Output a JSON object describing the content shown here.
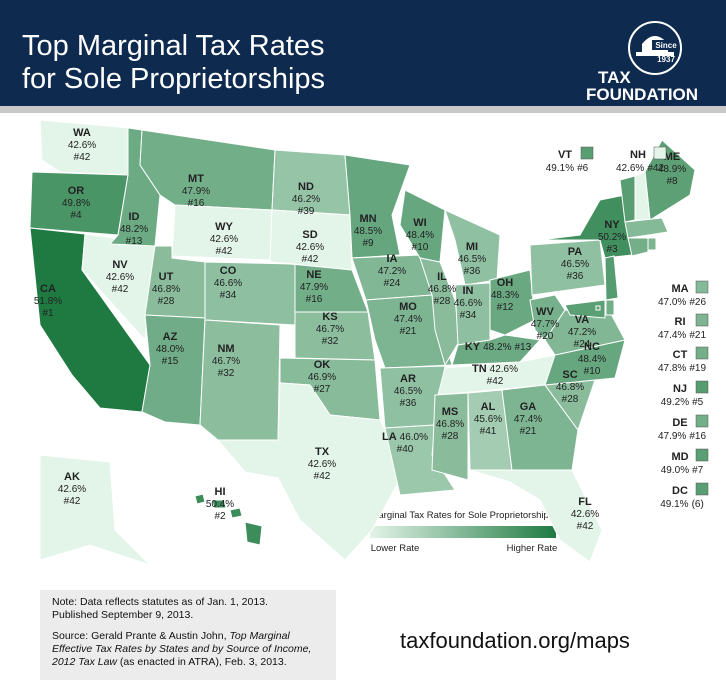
{
  "header": {
    "title_line1": "Top Marginal Tax Rates",
    "title_line2": "for Sole Proprietorships",
    "logo_since": "Since",
    "logo_year": "1937",
    "logo_tax": "TAX",
    "logo_foundation": "FOUNDATION"
  },
  "states": [
    {
      "abbr": "WA",
      "rate": "42.6%",
      "rank": "#42"
    },
    {
      "abbr": "OR",
      "rate": "49.8%",
      "rank": "#4"
    },
    {
      "abbr": "CA",
      "rate": "51.8%",
      "rank": "#1"
    },
    {
      "abbr": "NV",
      "rate": "42.6%",
      "rank": "#42"
    },
    {
      "abbr": "ID",
      "rate": "48.2%",
      "rank": "#13"
    },
    {
      "abbr": "MT",
      "rate": "47.9%",
      "rank": "#16"
    },
    {
      "abbr": "WY",
      "rate": "42.6%",
      "rank": "#42"
    },
    {
      "abbr": "UT",
      "rate": "46.8%",
      "rank": "#28"
    },
    {
      "abbr": "CO",
      "rate": "46.6%",
      "rank": "#34"
    },
    {
      "abbr": "AZ",
      "rate": "48.0%",
      "rank": "#15"
    },
    {
      "abbr": "NM",
      "rate": "46.7%",
      "rank": "#32"
    },
    {
      "abbr": "ND",
      "rate": "46.2%",
      "rank": "#39"
    },
    {
      "abbr": "SD",
      "rate": "42.6%",
      "rank": "#42"
    },
    {
      "abbr": "NE",
      "rate": "47.9%",
      "rank": "#16"
    },
    {
      "abbr": "KS",
      "rate": "46.7%",
      "rank": "#32"
    },
    {
      "abbr": "OK",
      "rate": "46.9%",
      "rank": "#27"
    },
    {
      "abbr": "TX",
      "rate": "42.6%",
      "rank": "#42"
    },
    {
      "abbr": "MN",
      "rate": "48.5%",
      "rank": "#9"
    },
    {
      "abbr": "IA",
      "rate": "47.2%",
      "rank": "#24"
    },
    {
      "abbr": "MO",
      "rate": "47.4%",
      "rank": "#21"
    },
    {
      "abbr": "AR",
      "rate": "46.5%",
      "rank": "#36"
    },
    {
      "abbr": "LA",
      "rate": "46.0%",
      "rank": "#40"
    },
    {
      "abbr": "WI",
      "rate": "48.4%",
      "rank": "#10"
    },
    {
      "abbr": "IL",
      "rate": "46.8%",
      "rank": "#28"
    },
    {
      "abbr": "MI",
      "rate": "46.5%",
      "rank": "#36"
    },
    {
      "abbr": "IN",
      "rate": "46.6%",
      "rank": "#34"
    },
    {
      "abbr": "OH",
      "rate": "48.3%",
      "rank": "#12"
    },
    {
      "abbr": "KY",
      "rate": "48.2%",
      "rank": "#13"
    },
    {
      "abbr": "TN",
      "rate": "42.6%",
      "rank": "#42"
    },
    {
      "abbr": "MS",
      "rate": "46.8%",
      "rank": "#28"
    },
    {
      "abbr": "AL",
      "rate": "45.6%",
      "rank": "#41"
    },
    {
      "abbr": "GA",
      "rate": "47.4%",
      "rank": "#21"
    },
    {
      "abbr": "FL",
      "rate": "42.6%",
      "rank": "#42"
    },
    {
      "abbr": "SC",
      "rate": "46.8%",
      "rank": "#28"
    },
    {
      "abbr": "NC",
      "rate": "48.4%",
      "rank": "#10"
    },
    {
      "abbr": "VA",
      "rate": "47.2%",
      "rank": "#24"
    },
    {
      "abbr": "WV",
      "rate": "47.7%",
      "rank": "#20"
    },
    {
      "abbr": "PA",
      "rate": "46.5%",
      "rank": "#36"
    },
    {
      "abbr": "NY",
      "rate": "50.2%",
      "rank": "#3"
    },
    {
      "abbr": "ME",
      "rate": "48.9%",
      "rank": "#8"
    },
    {
      "abbr": "VT",
      "rate": "49.1%",
      "rank": "#6"
    },
    {
      "abbr": "NH",
      "rate": "42.6%",
      "rank": "#42"
    },
    {
      "abbr": "MA",
      "rate": "47.0%",
      "rank": "#26"
    },
    {
      "abbr": "RI",
      "rate": "47.4%",
      "rank": "#21"
    },
    {
      "abbr": "CT",
      "rate": "47.8%",
      "rank": "#19"
    },
    {
      "abbr": "NJ",
      "rate": "49.2%",
      "rank": "#5"
    },
    {
      "abbr": "DE",
      "rate": "47.9%",
      "rank": "#16"
    },
    {
      "abbr": "MD",
      "rate": "49.0%",
      "rank": "#7"
    },
    {
      "abbr": "DC",
      "rate": "49.1%",
      "rank": "(6)"
    },
    {
      "abbr": "AK",
      "rate": "42.6%",
      "rank": "#42"
    },
    {
      "abbr": "HI",
      "rate": "50.4%",
      "rank": "#2"
    }
  ],
  "legend": {
    "title": "Marginal Tax Rates for Sole Proprietorships",
    "low": "Lower Rate",
    "high": "Higher Rate"
  },
  "note": {
    "line1": "Note: Data reflects statutes as of Jan. 1, 2013.",
    "line2": "Published September 9, 2013.",
    "source_before": "Source: Gerald Prante & Austin John, ",
    "source_title": "Top Marginal Effective Tax Rates by States and by Source of Income, 2012 Tax Law",
    "source_after": " (as enacted in ATRA), Feb. 3, 2013."
  },
  "url": "taxfoundation.org/maps"
}
